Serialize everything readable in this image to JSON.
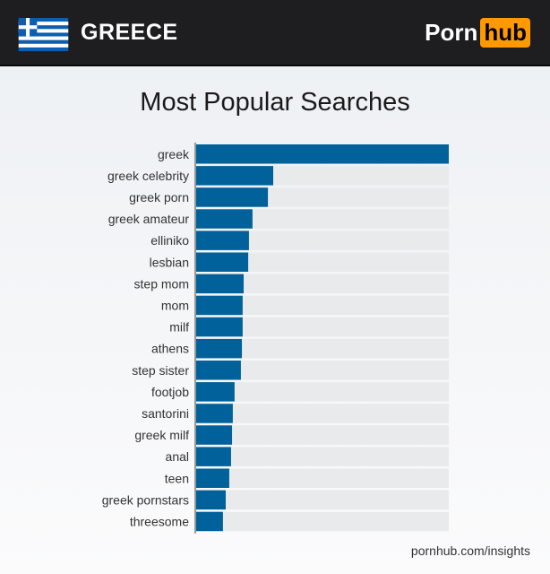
{
  "header": {
    "country": "GREECE",
    "logo_left": "Porn",
    "logo_right": "hub",
    "flag_icon": "greece-flag-icon"
  },
  "colors": {
    "bar": "#00619b",
    "track": "#e9eaeb",
    "header_bg": "#1e1e21",
    "logo_accent": "#ff9900"
  },
  "chart_data": {
    "type": "bar",
    "orientation": "horizontal",
    "title": "Most Popular Searches",
    "categories": [
      "greek",
      "greek celebrity",
      "greek porn",
      "greek amateur",
      "elliniko",
      "lesbian",
      "step mom",
      "mom",
      "milf",
      "athens",
      "step sister",
      "footjob",
      "santorini",
      "greek milf",
      "anal",
      "teen",
      "greek pornstars",
      "threesome"
    ],
    "values": [
      100,
      30.5,
      28.4,
      22.3,
      20.9,
      20.6,
      18.8,
      18.4,
      18.4,
      18.1,
      17.7,
      15.2,
      14.5,
      14.2,
      13.8,
      13.1,
      11.7,
      10.6
    ],
    "xlim": [
      0,
      100
    ],
    "grid": false,
    "legend": "none"
  },
  "footer": {
    "source": "pornhub.com/insights"
  }
}
